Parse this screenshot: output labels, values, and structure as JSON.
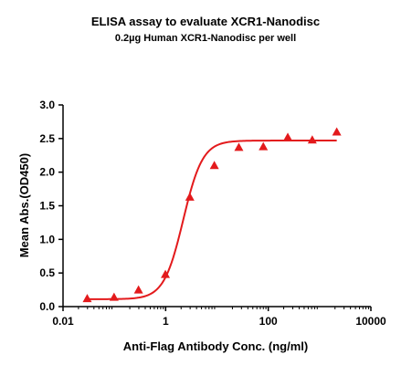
{
  "chart_data": {
    "type": "scatter",
    "title": "ELISA assay to evaluate XCR1-Nanodisc",
    "subtitle": "0.2µg Human XCR1-Nanodisc per well",
    "xlabel": "Anti-Flag Antibody Conc. (ng/ml)",
    "ylabel": "Mean Abs.(OD450)",
    "x_scale": "log",
    "xlim": [
      0.01,
      10000
    ],
    "ylim": [
      0,
      3.0
    ],
    "x_ticks": [
      0.01,
      1,
      100,
      10000
    ],
    "x_tick_labels": [
      "0.01",
      "1",
      "100",
      "10000"
    ],
    "y_ticks": [
      0,
      0.5,
      1.0,
      1.5,
      2.0,
      2.5,
      3.0
    ],
    "y_tick_labels": [
      "0.0",
      "0.5",
      "1.0",
      "1.5",
      "2.0",
      "2.5",
      "3.0"
    ],
    "grid": false,
    "legend": "none",
    "marker": "triangle",
    "color": "#e31a1c",
    "series": [
      {
        "x": [
          0.0296,
          0.0988,
          0.296,
          0.988,
          2.96,
          8.89,
          26.7,
          80,
          240,
          720,
          2160
        ],
        "y": [
          0.12,
          0.14,
          0.25,
          0.48,
          1.63,
          2.1,
          2.37,
          2.38,
          2.52,
          2.48,
          2.6
        ]
      }
    ],
    "fit_curve": {
      "model": "4PL",
      "bottom": 0.11,
      "top": 2.47,
      "ec50": 2.2,
      "hill": 2.3
    }
  }
}
